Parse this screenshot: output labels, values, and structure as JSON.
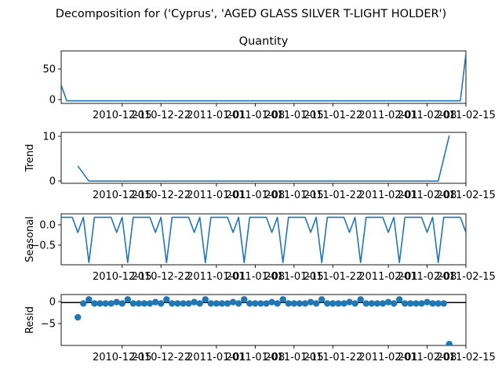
{
  "suptitle": "Decomposition for ('Cyprus', 'AGED GLASS SILVER T-LIGHT HOLDER')",
  "colors": {
    "series": "#1f77b4",
    "axis": "#000000",
    "background": "#ffffff"
  },
  "chart_data": [
    {
      "type": "line",
      "panel": "observed",
      "title": "Quantity",
      "ylabel": "",
      "xlim": [
        "2010-12-04",
        "2011-02-15"
      ],
      "ylim": [
        -4,
        76
      ],
      "yticks": [
        "0",
        "50"
      ],
      "xticks": [
        "2010-12-15",
        "2010-12-22",
        "2011-01-01",
        "2011-01-08",
        "2011-01-15",
        "2011-01-22",
        "2011-02-01",
        "2011-02-08",
        "2011-02-15"
      ],
      "x": [
        "2010-12-04",
        "2010-12-05",
        "2010-12-06",
        "2010-12-07",
        "2010-12-08",
        "2010-12-09",
        "2010-12-10",
        "2010-12-11",
        "2010-12-12",
        "2010-12-13",
        "2010-12-14",
        "2010-12-15",
        "2010-12-16",
        "2010-12-17",
        "2010-12-18",
        "2010-12-19",
        "2010-12-20",
        "2010-12-21",
        "2010-12-22",
        "2010-12-23",
        "2010-12-24",
        "2010-12-25",
        "2010-12-26",
        "2010-12-27",
        "2010-12-28",
        "2010-12-29",
        "2010-12-30",
        "2010-12-31",
        "2011-01-01",
        "2011-01-02",
        "2011-01-03",
        "2011-01-04",
        "2011-01-05",
        "2011-01-06",
        "2011-01-07",
        "2011-01-08",
        "2011-01-09",
        "2011-01-10",
        "2011-01-11",
        "2011-01-12",
        "2011-01-13",
        "2011-01-14",
        "2011-01-15",
        "2011-01-16",
        "2011-01-17",
        "2011-01-18",
        "2011-01-19",
        "2011-01-20",
        "2011-01-21",
        "2011-01-22",
        "2011-01-23",
        "2011-01-24",
        "2011-01-25",
        "2011-01-26",
        "2011-01-27",
        "2011-01-28",
        "2011-01-29",
        "2011-01-30",
        "2011-01-31",
        "2011-02-01",
        "2011-02-02",
        "2011-02-03",
        "2011-02-04",
        "2011-02-05",
        "2011-02-06",
        "2011-02-07",
        "2011-02-08",
        "2011-02-09",
        "2011-02-10",
        "2011-02-11",
        "2011-02-12",
        "2011-02-13",
        "2011-02-14",
        "2011-02-15"
      ],
      "values": [
        24,
        0,
        0,
        0,
        0,
        0,
        0,
        0,
        0,
        0,
        0,
        0,
        0,
        0,
        0,
        0,
        0,
        0,
        0,
        0,
        0,
        0,
        0,
        0,
        0,
        0,
        0,
        0,
        0,
        0,
        0,
        0,
        0,
        0,
        0,
        0,
        0,
        0,
        0,
        0,
        0,
        0,
        0,
        0,
        0,
        0,
        0,
        0,
        0,
        0,
        0,
        0,
        0,
        0,
        0,
        0,
        0,
        0,
        0,
        0,
        0,
        0,
        0,
        0,
        0,
        0,
        0,
        0,
        0,
        0,
        0,
        0,
        0,
        72
      ]
    },
    {
      "type": "line",
      "panel": "trend",
      "title": "",
      "ylabel": "Trend",
      "xlim": [
        "2010-12-04",
        "2011-02-15"
      ],
      "ylim": [
        -0.5,
        11
      ],
      "yticks": [
        "0",
        "10"
      ],
      "xticks": [
        "2010-12-15",
        "2010-12-22",
        "2011-01-01",
        "2011-01-08",
        "2011-01-15",
        "2011-01-22",
        "2011-02-01",
        "2011-02-08",
        "2011-02-15"
      ],
      "x": [
        "2010-12-07",
        "2010-12-08",
        "2010-12-09",
        "2010-12-10",
        "2010-12-11",
        "2010-12-12",
        "2010-12-13",
        "2010-12-14",
        "2010-12-15",
        "2010-12-16",
        "2010-12-17",
        "2010-12-18",
        "2010-12-19",
        "2010-12-20",
        "2010-12-21",
        "2010-12-22",
        "2010-12-23",
        "2010-12-24",
        "2010-12-25",
        "2010-12-26",
        "2010-12-27",
        "2010-12-28",
        "2010-12-29",
        "2010-12-30",
        "2010-12-31",
        "2011-01-01",
        "2011-01-02",
        "2011-01-03",
        "2011-01-04",
        "2011-01-05",
        "2011-01-06",
        "2011-01-07",
        "2011-01-08",
        "2011-01-09",
        "2011-01-10",
        "2011-01-11",
        "2011-01-12",
        "2011-01-13",
        "2011-01-14",
        "2011-01-15",
        "2011-01-16",
        "2011-01-17",
        "2011-01-18",
        "2011-01-19",
        "2011-01-20",
        "2011-01-21",
        "2011-01-22",
        "2011-01-23",
        "2011-01-24",
        "2011-01-25",
        "2011-01-26",
        "2011-01-27",
        "2011-01-28",
        "2011-01-29",
        "2011-01-30",
        "2011-01-31",
        "2011-02-01",
        "2011-02-02",
        "2011-02-03",
        "2011-02-04",
        "2011-02-05",
        "2011-02-06",
        "2011-02-07",
        "2011-02-08",
        "2011-02-09",
        "2011-02-10",
        "2011-02-11",
        "2011-02-12"
      ],
      "values": [
        3.4,
        1.7,
        0,
        0,
        0,
        0,
        0,
        0,
        0,
        0,
        0,
        0,
        0,
        0,
        0,
        0,
        0,
        0,
        0,
        0,
        0,
        0,
        0,
        0,
        0,
        0,
        0,
        0,
        0,
        0,
        0,
        0,
        0,
        0,
        0,
        0,
        0,
        0,
        0,
        0,
        0,
        0,
        0,
        0,
        0,
        0,
        0,
        0,
        0,
        0,
        0,
        0,
        0,
        0,
        0,
        0,
        0,
        0,
        0,
        0,
        0,
        0,
        0,
        0,
        0,
        0,
        5.1,
        10.3
      ]
    },
    {
      "type": "line",
      "panel": "seasonal",
      "title": "",
      "ylabel": "Seasonal",
      "xlim": [
        "2010-12-04",
        "2011-02-15"
      ],
      "ylim": [
        -0.9,
        0.28
      ],
      "yticks": [
        "0.0",
        "−0.5"
      ],
      "xticks": [
        "2010-12-15",
        "2010-12-22",
        "2011-01-01",
        "2011-01-08",
        "2011-01-15",
        "2011-01-22",
        "2011-02-01",
        "2011-02-08",
        "2011-02-15"
      ],
      "pattern": [
        0.2,
        0.2,
        0.2,
        -0.15,
        0.2,
        -0.85,
        0.2
      ],
      "x_start": "2010-12-04",
      "n_points": 74
    },
    {
      "type": "scatter",
      "panel": "resid",
      "title": "",
      "ylabel": "Resid",
      "xlim": [
        "2010-12-04",
        "2011-02-15"
      ],
      "ylim": [
        -9.6,
        1.8
      ],
      "yticks": [
        "0",
        "−5"
      ],
      "xticks": [
        "2010-12-15",
        "2010-12-22",
        "2011-01-01",
        "2011-01-08",
        "2011-01-15",
        "2011-01-22",
        "2011-02-01",
        "2011-02-08",
        "2011-02-15"
      ],
      "zero_line": true,
      "x": [
        "2010-12-07",
        "2010-12-08",
        "2010-12-09",
        "2010-12-10",
        "2010-12-11",
        "2010-12-12",
        "2010-12-13",
        "2010-12-14",
        "2010-12-15",
        "2010-12-16",
        "2010-12-17",
        "2010-12-18",
        "2010-12-19",
        "2010-12-20",
        "2010-12-21",
        "2010-12-22",
        "2010-12-23",
        "2010-12-24",
        "2010-12-25",
        "2010-12-26",
        "2010-12-27",
        "2010-12-28",
        "2010-12-29",
        "2010-12-30",
        "2010-12-31",
        "2011-01-01",
        "2011-01-02",
        "2011-01-03",
        "2011-01-04",
        "2011-01-05",
        "2011-01-06",
        "2011-01-07",
        "2011-01-08",
        "2011-01-09",
        "2011-01-10",
        "2011-01-11",
        "2011-01-12",
        "2011-01-13",
        "2011-01-14",
        "2011-01-15",
        "2011-01-16",
        "2011-01-17",
        "2011-01-18",
        "2011-01-19",
        "2011-01-20",
        "2011-01-21",
        "2011-01-22",
        "2011-01-23",
        "2011-01-24",
        "2011-01-25",
        "2011-01-26",
        "2011-01-27",
        "2011-01-28",
        "2011-01-29",
        "2011-01-30",
        "2011-01-31",
        "2011-02-01",
        "2011-02-02",
        "2011-02-03",
        "2011-02-04",
        "2011-02-05",
        "2011-02-06",
        "2011-02-07",
        "2011-02-08",
        "2011-02-09",
        "2011-02-10",
        "2011-02-11",
        "2011-02-12"
      ],
      "values": [
        -3.3,
        -0.2,
        0.7,
        -0.2,
        -0.2,
        -0.2,
        -0.2,
        0.1,
        -0.2,
        0.7,
        -0.2,
        -0.2,
        -0.2,
        -0.2,
        0.1,
        -0.2,
        0.7,
        -0.2,
        -0.2,
        -0.2,
        -0.2,
        0.1,
        -0.2,
        0.7,
        -0.2,
        -0.2,
        -0.2,
        -0.2,
        0.1,
        -0.2,
        0.7,
        -0.2,
        -0.2,
        -0.2,
        -0.2,
        0.1,
        -0.2,
        0.7,
        -0.2,
        -0.2,
        -0.2,
        -0.2,
        0.1,
        -0.2,
        0.7,
        -0.2,
        -0.2,
        -0.2,
        -0.2,
        0.1,
        -0.2,
        0.7,
        -0.2,
        -0.2,
        -0.2,
        -0.2,
        0.1,
        -0.2,
        0.7,
        -0.2,
        -0.2,
        -0.2,
        -0.2,
        0.1,
        -0.2,
        -0.2,
        -0.2,
        -9.3
      ]
    }
  ]
}
